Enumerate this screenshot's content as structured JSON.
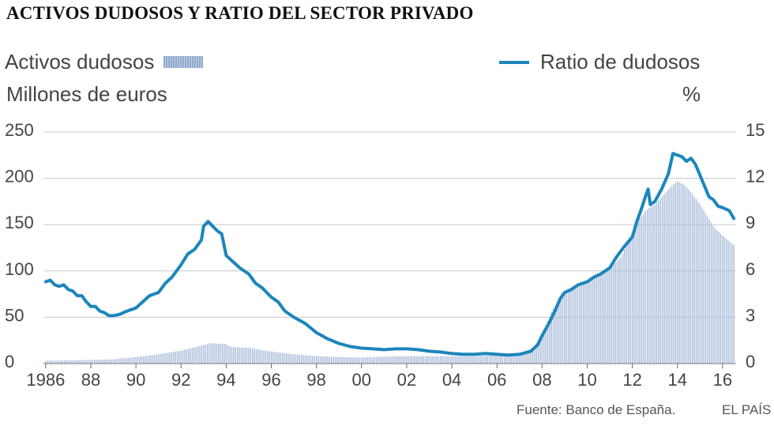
{
  "title": "ACTIVOS DUDOSOS Y RATIO DEL SECTOR PRIVADO",
  "legend": {
    "bars_label": "Activos dudosos",
    "line_label": "Ratio de dudosos"
  },
  "units": {
    "left": "Millones de euros",
    "right": "%"
  },
  "footer": {
    "source": "Fuente: Banco de España.",
    "brand": "EL PAÍS"
  },
  "colors": {
    "bars": "#a9bcda",
    "line": "#1b86bb",
    "grid": "#c8c8c8"
  },
  "chart_data": {
    "type": "bar+line",
    "title": "ACTIVOS DUDOSOS Y RATIO DEL SECTOR PRIVADO",
    "left_axis": {
      "label": "Millones de euros",
      "ylim": [
        0,
        250
      ],
      "ticks": [
        0,
        50,
        100,
        150,
        200,
        250
      ]
    },
    "right_axis": {
      "label": "%",
      "ylim": [
        0,
        15
      ],
      "ticks": [
        0,
        3,
        6,
        9,
        12,
        15
      ]
    },
    "x_axis": {
      "xlim": [
        1985.9,
        2016.6
      ],
      "ticks": [
        {
          "value": 1986,
          "label": "1986"
        },
        {
          "value": 1988,
          "label": "88"
        },
        {
          "value": 1990,
          "label": "90"
        },
        {
          "value": 1992,
          "label": "92"
        },
        {
          "value": 1994,
          "label": "94"
        },
        {
          "value": 1996,
          "label": "96"
        },
        {
          "value": 1998,
          "label": "98"
        },
        {
          "value": 2000,
          "label": "00"
        },
        {
          "value": 2002,
          "label": "02"
        },
        {
          "value": 2004,
          "label": "04"
        },
        {
          "value": 2006,
          "label": "06"
        },
        {
          "value": 2008,
          "label": "08"
        },
        {
          "value": 2010,
          "label": "10"
        },
        {
          "value": 2012,
          "label": "12"
        },
        {
          "value": 2014,
          "label": "14"
        },
        {
          "value": 2016,
          "label": "16"
        }
      ]
    },
    "grid": "horizontal",
    "series": [
      {
        "name": "Activos dudosos",
        "kind": "bar",
        "axis": "left",
        "points": [
          [
            1986.0,
            3
          ],
          [
            1987.0,
            3.5
          ],
          [
            1988.0,
            4
          ],
          [
            1989.0,
            4.5
          ],
          [
            1990.0,
            7
          ],
          [
            1991.0,
            10
          ],
          [
            1991.5,
            12
          ],
          [
            1992.0,
            14
          ],
          [
            1992.5,
            17
          ],
          [
            1993.0,
            20
          ],
          [
            1993.3,
            22
          ],
          [
            1994.0,
            21
          ],
          [
            1994.2,
            18
          ],
          [
            1995.0,
            17
          ],
          [
            1996.0,
            13
          ],
          [
            1997.0,
            10
          ],
          [
            1998.0,
            8
          ],
          [
            1999.0,
            7
          ],
          [
            2000.0,
            6.5
          ],
          [
            2001.0,
            7.5
          ],
          [
            2002.0,
            8
          ],
          [
            2003.0,
            8
          ],
          [
            2004.0,
            8
          ],
          [
            2005.0,
            8
          ],
          [
            2006.0,
            9
          ],
          [
            2007.0,
            10
          ],
          [
            2007.5,
            14
          ],
          [
            2008.0,
            30
          ],
          [
            2008.4,
            55
          ],
          [
            2008.7,
            68
          ],
          [
            2009.0,
            75
          ],
          [
            2009.5,
            82
          ],
          [
            2010.0,
            90
          ],
          [
            2010.5,
            95
          ],
          [
            2011.0,
            102
          ],
          [
            2011.5,
            115
          ],
          [
            2012.0,
            140
          ],
          [
            2012.3,
            155
          ],
          [
            2012.6,
            165
          ],
          [
            2013.0,
            172
          ],
          [
            2013.5,
            185
          ],
          [
            2013.8,
            193
          ],
          [
            2014.0,
            197
          ],
          [
            2014.3,
            193
          ],
          [
            2014.6,
            185
          ],
          [
            2015.0,
            172
          ],
          [
            2015.3,
            160
          ],
          [
            2015.6,
            148
          ],
          [
            2016.0,
            138
          ],
          [
            2016.3,
            132
          ],
          [
            2016.5,
            128
          ]
        ]
      },
      {
        "name": "Ratio de dudosos",
        "kind": "line",
        "axis": "right",
        "points": [
          [
            1986.0,
            5.3
          ],
          [
            1986.2,
            5.4
          ],
          [
            1986.4,
            5.1
          ],
          [
            1986.6,
            5.0
          ],
          [
            1986.8,
            5.1
          ],
          [
            1987.0,
            4.8
          ],
          [
            1987.2,
            4.7
          ],
          [
            1987.4,
            4.4
          ],
          [
            1987.6,
            4.4
          ],
          [
            1987.8,
            4.0
          ],
          [
            1988.0,
            3.7
          ],
          [
            1988.2,
            3.7
          ],
          [
            1988.4,
            3.4
          ],
          [
            1988.6,
            3.3
          ],
          [
            1988.8,
            3.1
          ],
          [
            1989.0,
            3.1
          ],
          [
            1989.3,
            3.2
          ],
          [
            1989.6,
            3.4
          ],
          [
            1990.0,
            3.6
          ],
          [
            1990.3,
            4.0
          ],
          [
            1990.6,
            4.4
          ],
          [
            1991.0,
            4.6
          ],
          [
            1991.3,
            5.2
          ],
          [
            1991.6,
            5.6
          ],
          [
            1992.0,
            6.4
          ],
          [
            1992.3,
            7.1
          ],
          [
            1992.6,
            7.4
          ],
          [
            1992.9,
            8.0
          ],
          [
            1993.0,
            8.9
          ],
          [
            1993.2,
            9.2
          ],
          [
            1993.4,
            8.9
          ],
          [
            1993.6,
            8.6
          ],
          [
            1993.8,
            8.4
          ],
          [
            1994.0,
            7.0
          ],
          [
            1994.3,
            6.6
          ],
          [
            1994.6,
            6.2
          ],
          [
            1995.0,
            5.8
          ],
          [
            1995.3,
            5.2
          ],
          [
            1995.6,
            4.9
          ],
          [
            1996.0,
            4.3
          ],
          [
            1996.3,
            4.0
          ],
          [
            1996.6,
            3.4
          ],
          [
            1997.0,
            3.0
          ],
          [
            1997.5,
            2.6
          ],
          [
            1998.0,
            2.0
          ],
          [
            1998.5,
            1.6
          ],
          [
            1999.0,
            1.3
          ],
          [
            1999.5,
            1.1
          ],
          [
            2000.0,
            1.0
          ],
          [
            2000.5,
            0.95
          ],
          [
            2001.0,
            0.9
          ],
          [
            2001.5,
            0.95
          ],
          [
            2002.0,
            0.95
          ],
          [
            2002.5,
            0.9
          ],
          [
            2003.0,
            0.8
          ],
          [
            2003.5,
            0.75
          ],
          [
            2004.0,
            0.65
          ],
          [
            2004.5,
            0.6
          ],
          [
            2005.0,
            0.6
          ],
          [
            2005.5,
            0.65
          ],
          [
            2006.0,
            0.6
          ],
          [
            2006.5,
            0.55
          ],
          [
            2007.0,
            0.6
          ],
          [
            2007.5,
            0.8
          ],
          [
            2007.8,
            1.2
          ],
          [
            2008.0,
            1.8
          ],
          [
            2008.3,
            2.6
          ],
          [
            2008.6,
            3.5
          ],
          [
            2008.8,
            4.2
          ],
          [
            2009.0,
            4.6
          ],
          [
            2009.3,
            4.8
          ],
          [
            2009.6,
            5.1
          ],
          [
            2010.0,
            5.3
          ],
          [
            2010.3,
            5.6
          ],
          [
            2010.6,
            5.8
          ],
          [
            2011.0,
            6.2
          ],
          [
            2011.3,
            6.9
          ],
          [
            2011.6,
            7.5
          ],
          [
            2012.0,
            8.2
          ],
          [
            2012.2,
            9.2
          ],
          [
            2012.4,
            10.0
          ],
          [
            2012.6,
            10.9
          ],
          [
            2012.7,
            11.3
          ],
          [
            2012.8,
            10.3
          ],
          [
            2013.0,
            10.5
          ],
          [
            2013.3,
            11.3
          ],
          [
            2013.6,
            12.3
          ],
          [
            2013.8,
            13.6
          ],
          [
            2014.0,
            13.5
          ],
          [
            2014.2,
            13.4
          ],
          [
            2014.4,
            13.1
          ],
          [
            2014.6,
            13.3
          ],
          [
            2014.8,
            12.9
          ],
          [
            2015.0,
            12.2
          ],
          [
            2015.2,
            11.5
          ],
          [
            2015.4,
            10.8
          ],
          [
            2015.6,
            10.6
          ],
          [
            2015.8,
            10.2
          ],
          [
            2016.0,
            10.1
          ],
          [
            2016.3,
            9.9
          ],
          [
            2016.5,
            9.4
          ]
        ]
      }
    ]
  }
}
